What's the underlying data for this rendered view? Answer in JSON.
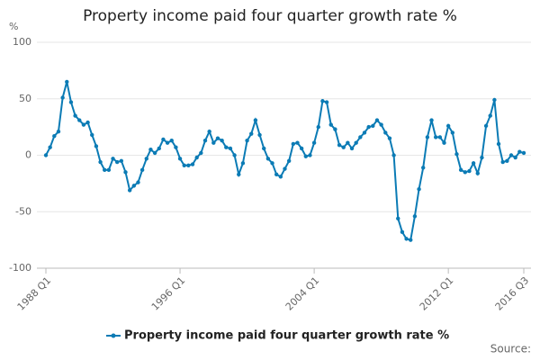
{
  "chart_data": {
    "type": "line",
    "title": "Property income paid four quarter growth rate %",
    "y_label": "%",
    "source": "Source:",
    "categories": [
      "1988 Q1",
      null,
      null,
      null,
      null,
      null,
      null,
      null,
      null,
      null,
      null,
      null,
      null,
      null,
      null,
      null,
      null,
      null,
      null,
      null,
      null,
      null,
      null,
      null,
      null,
      null,
      null,
      null,
      null,
      null,
      null,
      null,
      "1996 Q1",
      null,
      null,
      null,
      null,
      null,
      null,
      null,
      null,
      null,
      null,
      null,
      null,
      null,
      null,
      null,
      null,
      null,
      null,
      null,
      null,
      null,
      null,
      null,
      null,
      null,
      null,
      null,
      null,
      null,
      null,
      null,
      "2004 Q1",
      null,
      null,
      null,
      null,
      null,
      null,
      null,
      null,
      null,
      null,
      null,
      null,
      null,
      null,
      null,
      null,
      null,
      null,
      null,
      null,
      null,
      null,
      null,
      null,
      null,
      null,
      null,
      null,
      null,
      null,
      null,
      "2012 Q1",
      null,
      null,
      null,
      null,
      null,
      null,
      null,
      null,
      null,
      null,
      null,
      null,
      null,
      null,
      null,
      null,
      null,
      "2016 Q3"
    ],
    "series": [
      {
        "name": "Property income paid four quarter growth rate %",
        "color": "#0b7bb5",
        "values": [
          0,
          7,
          17,
          21,
          51,
          65,
          47,
          35,
          31,
          27,
          29,
          18,
          8,
          -6,
          -13,
          -13,
          -3,
          -6,
          -5,
          -15,
          -31,
          -27,
          -24,
          -13,
          -3,
          5,
          2,
          6,
          14,
          11,
          13,
          7,
          -3,
          -9,
          -9,
          -8,
          -2,
          2,
          13,
          21,
          11,
          15,
          13,
          7,
          6,
          0,
          -17,
          -7,
          13,
          19,
          31,
          18,
          6,
          -3,
          -7,
          -17,
          -19,
          -12,
          -5,
          10,
          11,
          6,
          -1,
          0,
          11,
          25,
          48,
          47,
          27,
          23,
          9,
          7,
          11,
          6,
          11,
          16,
          20,
          25,
          26,
          31,
          27,
          20,
          15,
          0,
          -56,
          -68,
          -74,
          -75,
          -54,
          -30,
          -11,
          16,
          31,
          16,
          16,
          11,
          26,
          20,
          1,
          -13,
          -15,
          -14,
          -7,
          -16,
          -2,
          26,
          35,
          49,
          10,
          -6,
          -5,
          0,
          -2,
          3,
          2
        ]
      }
    ],
    "ylim": [
      -100,
      100
    ],
    "yticks": [
      -100,
      -50,
      0,
      50,
      100
    ],
    "grid": true,
    "legend": "bottom"
  }
}
